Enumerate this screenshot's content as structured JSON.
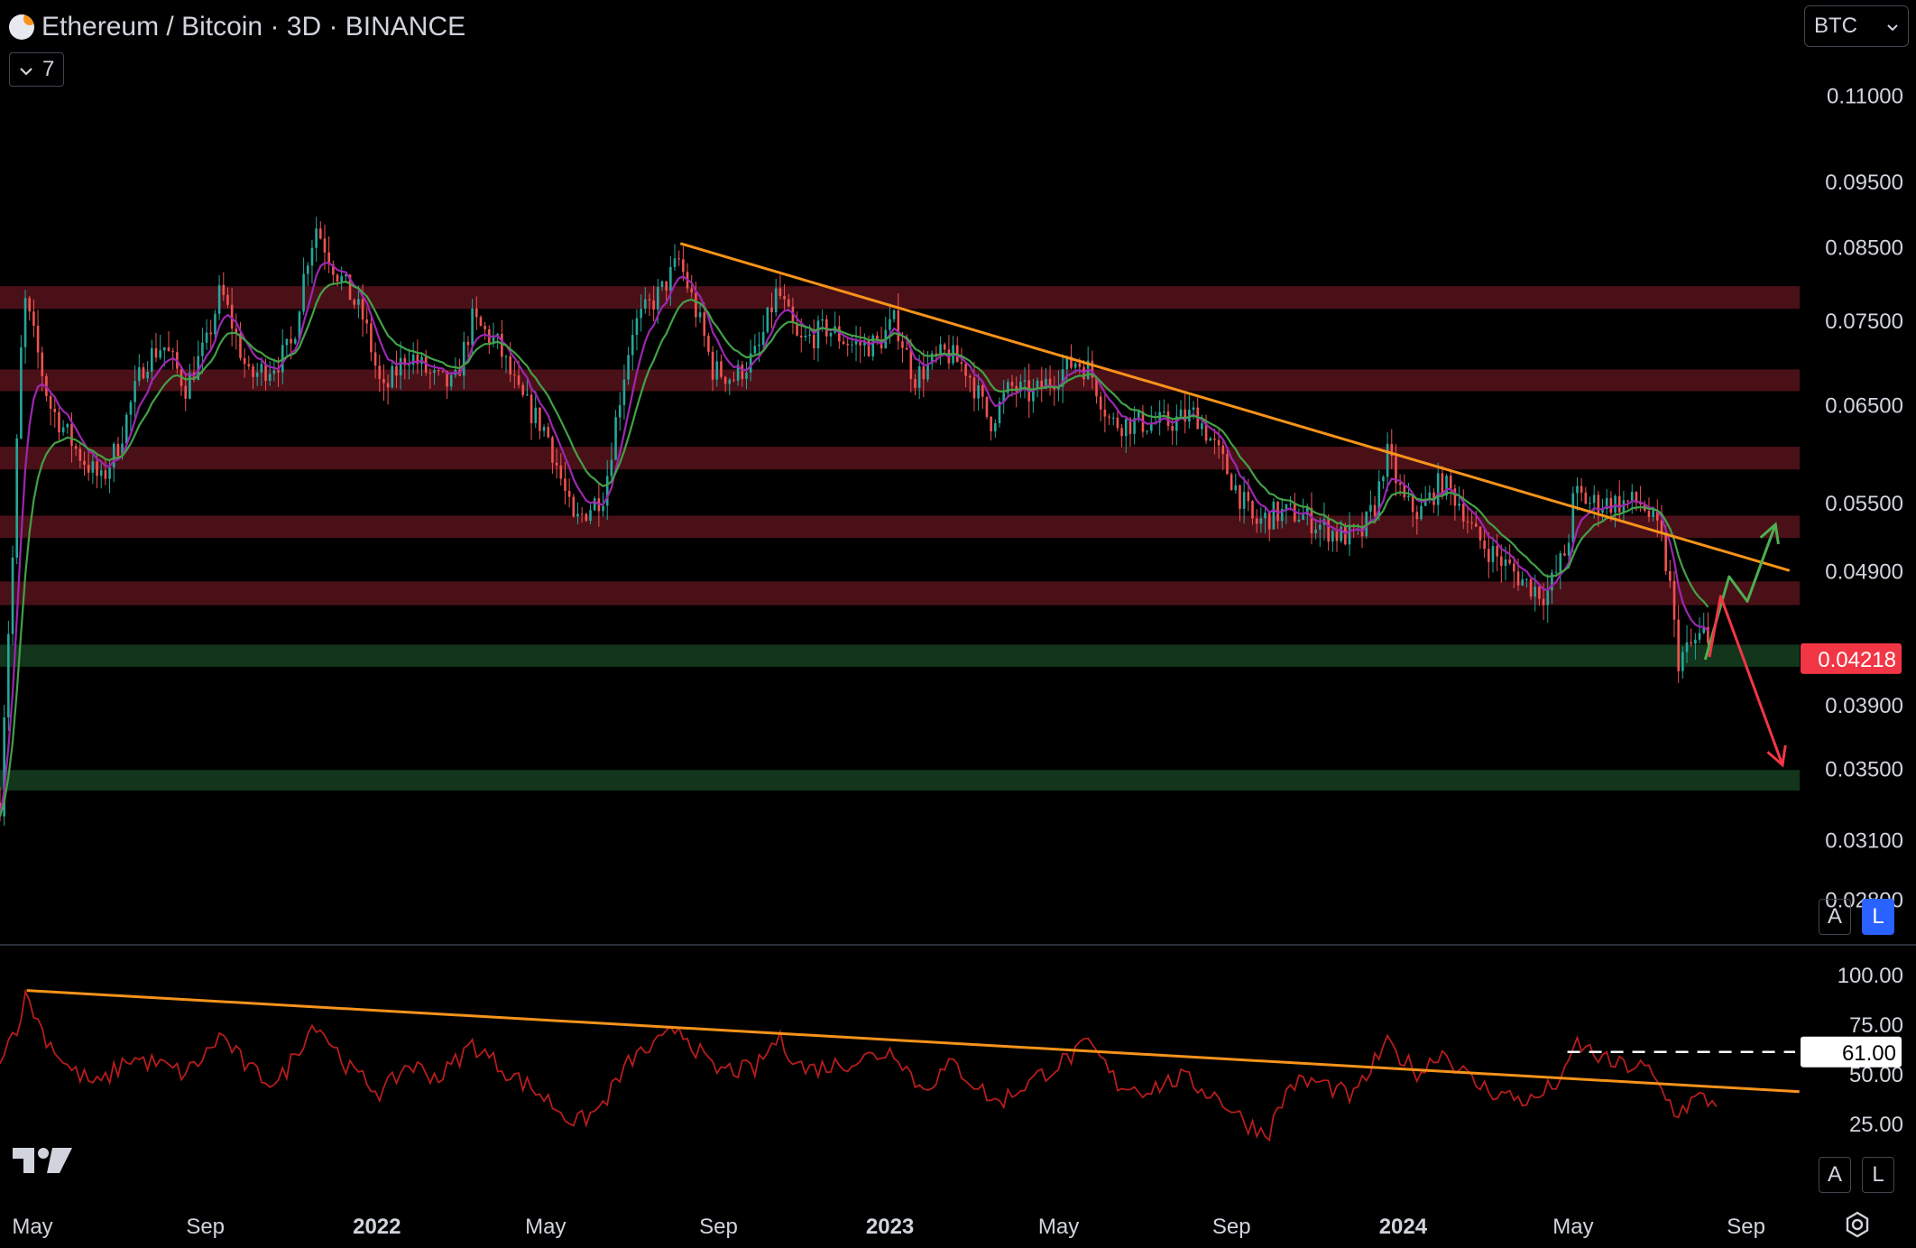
{
  "header": {
    "title": "Ethereum / Bitcoin · 3D · BINANCE",
    "indicator_count": "7",
    "currency": "BTC"
  },
  "colors": {
    "background": "#000000",
    "resistance_zone": "#4a1018",
    "support_zone": "#12351c",
    "trendline": "#f7931a",
    "candle_up": "#26a69a",
    "candle_down": "#ef5350",
    "ma_fast": "#9c27b0",
    "ma_slow": "#43a047",
    "rsi_line": "#b71c1c",
    "price_badge": "#f23645",
    "projection_up": "#4caf50",
    "projection_down": "#f23645"
  },
  "scale_buttons": {
    "auto": "A",
    "log": "L"
  },
  "chart_data": [
    {
      "type": "candlestick",
      "title": "Ethereum / Bitcoin · 3D · BINANCE",
      "scale": "log",
      "ylim": [
        0.0262,
        0.118
      ],
      "y_ticks": [
        "0.11000",
        "0.09500",
        "0.08500",
        "0.07500",
        "0.06500",
        "0.05500",
        "0.04900",
        "0.03900",
        "0.03500",
        "0.03100",
        "0.02800"
      ],
      "y_tick_values": [
        0.11,
        0.095,
        0.085,
        0.075,
        0.065,
        0.055,
        0.049,
        0.039,
        0.035,
        0.031,
        0.028
      ],
      "last_price": "0.04218",
      "last_price_value": 0.04218,
      "x_ticks": [
        "May",
        "Sep",
        "2022",
        "May",
        "Sep",
        "2023",
        "May",
        "Sep",
        "2024",
        "May",
        "Sep"
      ],
      "x_tick_dates": [
        "2021-05-01",
        "2021-09-01",
        "2022-01-01",
        "2022-05-01",
        "2022-09-01",
        "2023-01-01",
        "2023-05-01",
        "2023-09-01",
        "2024-01-01",
        "2024-05-01",
        "2024-09-01"
      ],
      "x_range": [
        "2021-05-01",
        "2024-12-31"
      ],
      "resistance_zones": [
        [
          0.0765,
          0.0795
        ],
        [
          0.0665,
          0.069
        ],
        [
          0.0582,
          0.0605
        ],
        [
          0.0518,
          0.0538
        ],
        [
          0.0462,
          0.0481
        ]
      ],
      "support_zones": [
        [
          0.0416,
          0.0432
        ],
        [
          0.0337,
          0.0349
        ]
      ],
      "trendline": [
        [
          "2022-08-28",
          0.0855
        ],
        [
          "2024-10-25",
          0.049
        ]
      ],
      "projection_bullish": [
        [
          "2024-08-26",
          0.0421
        ],
        [
          "2024-09-12",
          0.0485
        ],
        [
          "2024-09-25",
          0.0465
        ],
        [
          "2024-10-15",
          0.053
        ]
      ],
      "projection_bearish": [
        [
          "2024-08-29",
          0.0423
        ],
        [
          "2024-09-06",
          0.0469
        ],
        [
          "2024-10-20",
          0.0352
        ]
      ],
      "key_points": [
        [
          "2021-05-01",
          0.033
        ],
        [
          "2021-05-10",
          0.05
        ],
        [
          "2021-05-18",
          0.078
        ],
        [
          "2021-06-05",
          0.065
        ],
        [
          "2021-06-25",
          0.06
        ],
        [
          "2021-07-12",
          0.057
        ],
        [
          "2021-07-25",
          0.061
        ],
        [
          "2021-08-12",
          0.07
        ],
        [
          "2021-08-25",
          0.072
        ],
        [
          "2021-09-10",
          0.067
        ],
        [
          "2021-09-25",
          0.072
        ],
        [
          "2021-10-05",
          0.079
        ],
        [
          "2021-10-25",
          0.068
        ],
        [
          "2021-11-15",
          0.07
        ],
        [
          "2021-11-25",
          0.072
        ],
        [
          "2021-12-05",
          0.083
        ],
        [
          "2021-12-12",
          0.088
        ],
        [
          "2021-12-25",
          0.082
        ],
        [
          "2022-01-15",
          0.075
        ],
        [
          "2022-01-28",
          0.066
        ],
        [
          "2022-02-15",
          0.071
        ],
        [
          "2022-03-05",
          0.068
        ],
        [
          "2022-03-20",
          0.067
        ],
        [
          "2022-04-02",
          0.075
        ],
        [
          "2022-04-20",
          0.072
        ],
        [
          "2022-05-05",
          0.066
        ],
        [
          "2022-05-25",
          0.062
        ],
        [
          "2022-06-13",
          0.053
        ],
        [
          "2022-06-20",
          0.054
        ],
        [
          "2022-07-05",
          0.056
        ],
        [
          "2022-07-25",
          0.074
        ],
        [
          "2022-08-15",
          0.079
        ],
        [
          "2022-08-27",
          0.083
        ],
        [
          "2022-09-12",
          0.074
        ],
        [
          "2022-09-20",
          0.069
        ],
        [
          "2022-10-05",
          0.068
        ],
        [
          "2022-10-22",
          0.071
        ],
        [
          "2022-11-05",
          0.079
        ],
        [
          "2022-11-20",
          0.072
        ],
        [
          "2022-12-10",
          0.074
        ],
        [
          "2022-12-28",
          0.072
        ],
        [
          "2023-01-15",
          0.072
        ],
        [
          "2023-01-28",
          0.075
        ],
        [
          "2023-02-10",
          0.068
        ],
        [
          "2023-03-05",
          0.071
        ],
        [
          "2023-03-20",
          0.069
        ],
        [
          "2023-04-05",
          0.063
        ],
        [
          "2023-04-20",
          0.067
        ],
        [
          "2023-05-05",
          0.066
        ],
        [
          "2023-05-20",
          0.068
        ],
        [
          "2023-06-05",
          0.07
        ],
        [
          "2023-06-15",
          0.069
        ],
        [
          "2023-06-30",
          0.063
        ],
        [
          "2023-07-20",
          0.063
        ],
        [
          "2023-08-10",
          0.063
        ],
        [
          "2023-08-30",
          0.064
        ],
        [
          "2023-09-10",
          0.061
        ],
        [
          "2023-09-25",
          0.057
        ],
        [
          "2023-10-10",
          0.053
        ],
        [
          "2023-10-25",
          0.054
        ],
        [
          "2023-11-10",
          0.054
        ],
        [
          "2023-11-25",
          0.053
        ],
        [
          "2023-12-10",
          0.052
        ],
        [
          "2023-12-25",
          0.052
        ],
        [
          "2024-01-05",
          0.055
        ],
        [
          "2024-01-12",
          0.06
        ],
        [
          "2024-01-25",
          0.055
        ],
        [
          "2024-02-05",
          0.054
        ],
        [
          "2024-02-20",
          0.057
        ],
        [
          "2024-03-05",
          0.055
        ],
        [
          "2024-03-15",
          0.052
        ],
        [
          "2024-04-01",
          0.05
        ],
        [
          "2024-04-20",
          0.048
        ],
        [
          "2024-05-05",
          0.047
        ],
        [
          "2024-05-20",
          0.051
        ],
        [
          "2024-05-25",
          0.056
        ],
        [
          "2024-06-05",
          0.055
        ],
        [
          "2024-06-25",
          0.055
        ],
        [
          "2024-07-12",
          0.055
        ],
        [
          "2024-07-25",
          0.052
        ],
        [
          "2024-08-02",
          0.047
        ],
        [
          "2024-08-06",
          0.042
        ],
        [
          "2024-08-15",
          0.043
        ],
        [
          "2024-08-25",
          0.044
        ],
        [
          "2024-08-30",
          0.0422
        ]
      ]
    },
    {
      "type": "line",
      "title": "",
      "ylim": [
        0,
        100
      ],
      "y_ticks": [
        "100.00",
        "75.00",
        "50.00",
        "25.00"
      ],
      "y_tick_values": [
        100,
        75,
        50,
        25
      ],
      "level_line": 61,
      "level_label": "61.00",
      "trendline": [
        [
          "2021-05-20",
          92
        ],
        [
          "2024-11-01",
          41
        ]
      ],
      "level_line_range": [
        "2024-05-20",
        "2024-12-31"
      ],
      "key_points": [
        [
          "2021-05-01",
          60
        ],
        [
          "2021-05-12",
          72
        ],
        [
          "2021-05-20",
          90
        ],
        [
          "2021-06-01",
          70
        ],
        [
          "2021-06-20",
          52
        ],
        [
          "2021-07-10",
          44
        ],
        [
          "2021-08-01",
          58
        ],
        [
          "2021-08-20",
          55
        ],
        [
          "2021-09-10",
          50
        ],
        [
          "2021-09-25",
          60
        ],
        [
          "2021-10-05",
          70
        ],
        [
          "2021-10-25",
          52
        ],
        [
          "2021-11-15",
          45
        ],
        [
          "2021-12-05",
          70
        ],
        [
          "2021-12-12",
          76
        ],
        [
          "2022-01-05",
          52
        ],
        [
          "2022-01-28",
          40
        ],
        [
          "2022-02-15",
          55
        ],
        [
          "2022-03-10",
          48
        ],
        [
          "2022-04-02",
          65
        ],
        [
          "2022-04-25",
          52
        ],
        [
          "2022-05-20",
          40
        ],
        [
          "2022-06-15",
          25
        ],
        [
          "2022-07-01",
          32
        ],
        [
          "2022-07-25",
          58
        ],
        [
          "2022-08-15",
          66
        ],
        [
          "2022-08-27",
          74
        ],
        [
          "2022-09-20",
          52
        ],
        [
          "2022-10-20",
          52
        ],
        [
          "2022-11-05",
          68
        ],
        [
          "2022-11-25",
          52
        ],
        [
          "2022-12-20",
          55
        ],
        [
          "2023-01-28",
          62
        ],
        [
          "2023-02-15",
          42
        ],
        [
          "2023-03-10",
          55
        ],
        [
          "2023-04-10",
          35
        ],
        [
          "2023-05-01",
          45
        ],
        [
          "2023-06-05",
          60
        ],
        [
          "2023-06-15",
          65
        ],
        [
          "2023-07-05",
          45
        ],
        [
          "2023-07-25",
          42
        ],
        [
          "2023-08-20",
          48
        ],
        [
          "2023-09-15",
          38
        ],
        [
          "2023-10-05",
          25
        ],
        [
          "2023-10-20",
          20
        ],
        [
          "2023-11-05",
          45
        ],
        [
          "2023-11-25",
          46
        ],
        [
          "2023-12-20",
          38
        ],
        [
          "2024-01-12",
          65
        ],
        [
          "2024-02-05",
          50
        ],
        [
          "2024-02-20",
          62
        ],
        [
          "2024-03-15",
          45
        ],
        [
          "2024-04-01",
          40
        ],
        [
          "2024-04-25",
          36
        ],
        [
          "2024-05-20",
          50
        ],
        [
          "2024-05-25",
          66
        ],
        [
          "2024-06-20",
          55
        ],
        [
          "2024-07-15",
          53
        ],
        [
          "2024-08-06",
          30
        ],
        [
          "2024-08-20",
          38
        ],
        [
          "2024-09-05",
          35
        ]
      ]
    }
  ]
}
